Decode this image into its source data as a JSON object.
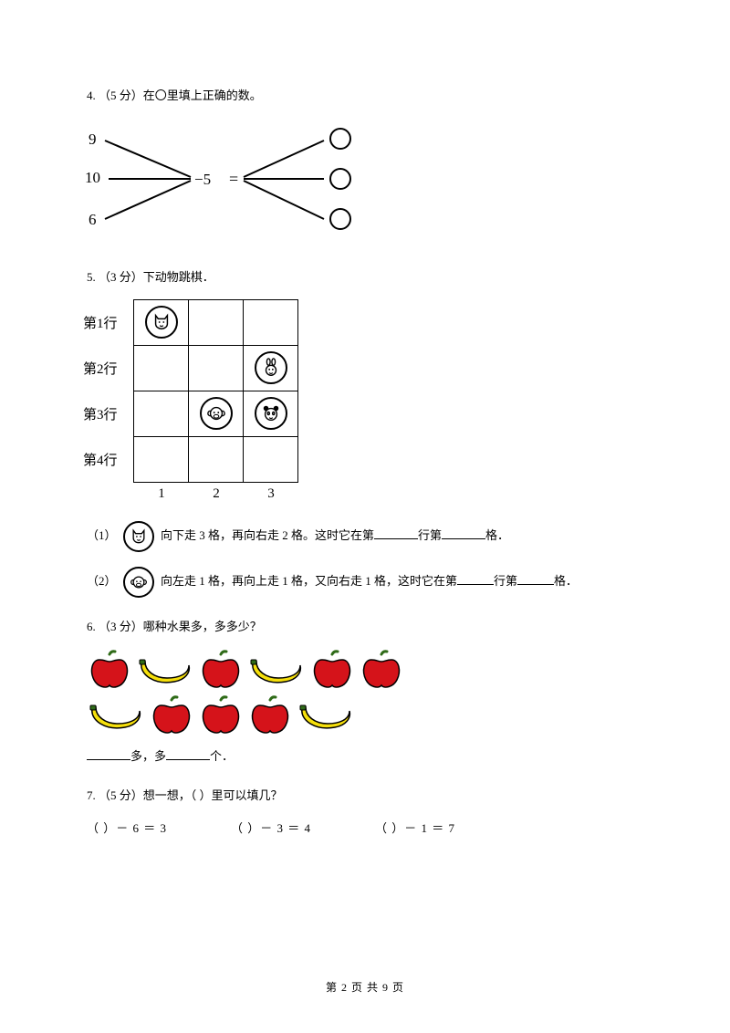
{
  "q4": {
    "prompt": "4.  （5 分）在〇里填上正确的数。",
    "left_values": [
      "9",
      "10",
      "6"
    ],
    "center_op": "−5",
    "equals": "="
  },
  "q5": {
    "prompt": "5.  （3 分）下动物跳棋．",
    "row_labels": [
      "第1行",
      "第2行",
      "第3行",
      "第4行"
    ],
    "col_labels": [
      "1",
      "2",
      "3"
    ],
    "sub1_prefix": "（1）",
    "sub1_text_a": "向下走 3 格，再向右走 2 格。这时它在第",
    "sub1_text_b": "行第",
    "sub1_text_c": "格．",
    "sub2_prefix": "（2）",
    "sub2_text_a": "向左走 1 格，再向上走 1 格，又向右走 1 格，这时它在第",
    "sub2_text_b": "行第",
    "sub2_text_c": "格．"
  },
  "q6": {
    "prompt": "6.  （3 分）哪种水果多，多多少？",
    "answer_mid": "多，多",
    "answer_tail": "个．",
    "colors": {
      "apple": "#d5131a",
      "banana": "#f5df0b",
      "stem": "#2f6b18",
      "outline": "#000000"
    },
    "row1": [
      "apple",
      "banana",
      "apple",
      "banana",
      "apple",
      "apple"
    ],
    "row2": [
      "banana",
      "apple",
      "apple",
      "apple",
      "banana"
    ]
  },
  "q7": {
    "prompt": "7.  （5 分）想一想，（     ）里可以填几？",
    "equations": [
      "（     ）－ 6 ＝ 3",
      "（     ）－ 3 ＝ 4",
      "（     ）－ 1 ＝ 7"
    ]
  },
  "footer": "第 2 页 共 9 页"
}
